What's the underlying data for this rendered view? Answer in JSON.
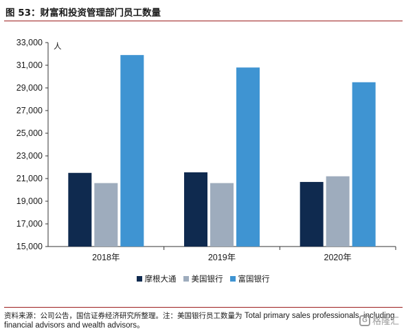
{
  "header": {
    "title": "图 53：财富和投资管理部门员工数量"
  },
  "chart_data": {
    "type": "bar",
    "categories": [
      "2018年",
      "2019年",
      "2020年"
    ],
    "series": [
      {
        "name": "摩根大通",
        "color": "#0f2a4f",
        "values": [
          21500,
          21550,
          20700
        ]
      },
      {
        "name": "美国银行",
        "color": "#9eacbd",
        "values": [
          20600,
          20600,
          21200
        ]
      },
      {
        "name": "富国银行",
        "color": "#3f94d2",
        "values": [
          31900,
          30800,
          29500
        ]
      }
    ],
    "ylim": [
      15000,
      33000
    ],
    "yticks": [
      15000,
      17000,
      19000,
      21000,
      23000,
      25000,
      27000,
      29000,
      31000,
      33000
    ],
    "ytick_labels": [
      "15,000",
      "17,000",
      "19,000",
      "21,000",
      "23,000",
      "25,000",
      "27,000",
      "29,000",
      "31,000",
      "33,000"
    ],
    "unit": "人",
    "grid": false,
    "legend_position": "bottom"
  },
  "footer": {
    "source_cn": "资料来源：公司公告，国信证券经济研究所整理。注：美国银行员工数量为",
    "source_en": "Total primary sales professionals, including financial advisors and wealth advisors。"
  },
  "watermark": {
    "icon": "G",
    "text": "格隆汇"
  }
}
